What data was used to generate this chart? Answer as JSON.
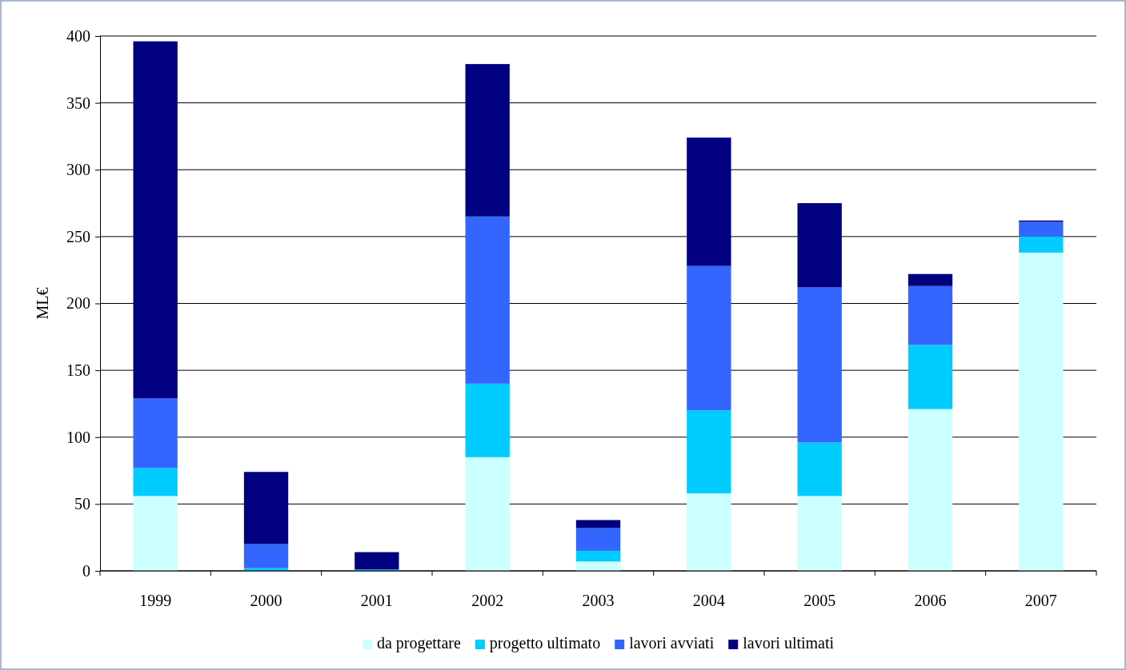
{
  "chart_data": {
    "type": "bar",
    "stacked": true,
    "ylabel": "ML€",
    "categories": [
      "1999",
      "2000",
      "2001",
      "2002",
      "2003",
      "2004",
      "2005",
      "2006",
      "2007"
    ],
    "series": [
      {
        "name": "da progettare",
        "color": "#ccffff",
        "values": [
          56,
          0,
          0,
          85,
          7,
          58,
          56,
          121,
          238
        ]
      },
      {
        "name": "progetto ultimato",
        "color": "#00ccff",
        "values": [
          21,
          2,
          1,
          55,
          8,
          62,
          40,
          48,
          12
        ]
      },
      {
        "name": "lavori avviati",
        "color": "#3366ff",
        "values": [
          52,
          18,
          0,
          125,
          17,
          108,
          116,
          44,
          11
        ]
      },
      {
        "name": "lavori ultimati",
        "color": "#000080",
        "values": [
          267,
          54,
          13,
          114,
          6,
          96,
          63,
          9,
          1
        ]
      }
    ],
    "ylim": [
      0,
      400
    ],
    "yticks": [
      0,
      50,
      100,
      150,
      200,
      250,
      300,
      350,
      400
    ],
    "grid": "y",
    "legend": "bottom"
  }
}
